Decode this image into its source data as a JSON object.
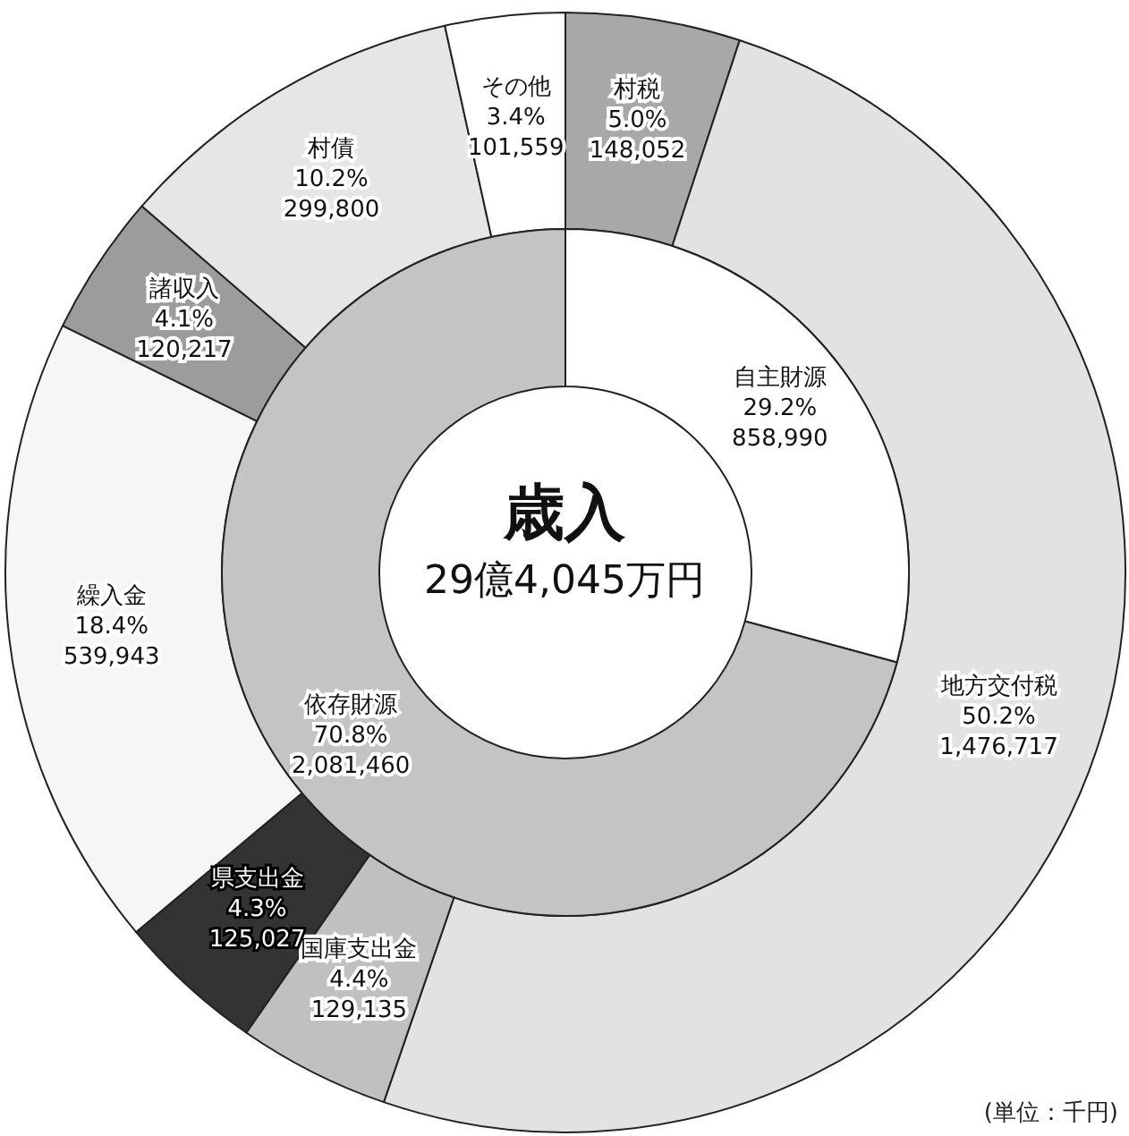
{
  "chart_data": [
    {
      "type": "donut",
      "title": "歳入",
      "subtitle": "29億4,045万円",
      "categories": [
        "自主財源",
        "依存財源"
      ],
      "values": [
        858990,
        2081460
      ],
      "value_labels": [
        "29.2%\n858,990",
        "70.8%\n2,081,460"
      ],
      "colors": [
        "#ffffff",
        "#c4c4c4"
      ]
    },
    {
      "type": "donut",
      "categories": [
        "村税",
        "地方交付税",
        "国庫支出金",
        "県支出金",
        "繰入金",
        "諸収入",
        "村債",
        "その他"
      ],
      "values": [
        148052,
        1476717,
        129135,
        125027,
        539943,
        120217,
        299800,
        101559
      ],
      "value_labels": [
        "5.0%\n148,052",
        "50.2%\n1,476,717",
        "4.4%\n129,135",
        "4.3%\n125,027",
        "18.4%\n539,943",
        "4.1%\n120,217",
        "10.2%\n299,800",
        "3.4%\n101,559"
      ],
      "colors": [
        "#a8a8a8",
        "#e2e2e2",
        "#c0c0c0",
        "#333333",
        "#f6f6f6",
        "#9c9c9c",
        "#e6e6e6",
        "#ffffff"
      ],
      "annotations": [
        "(単位：千円)"
      ]
    }
  ]
}
